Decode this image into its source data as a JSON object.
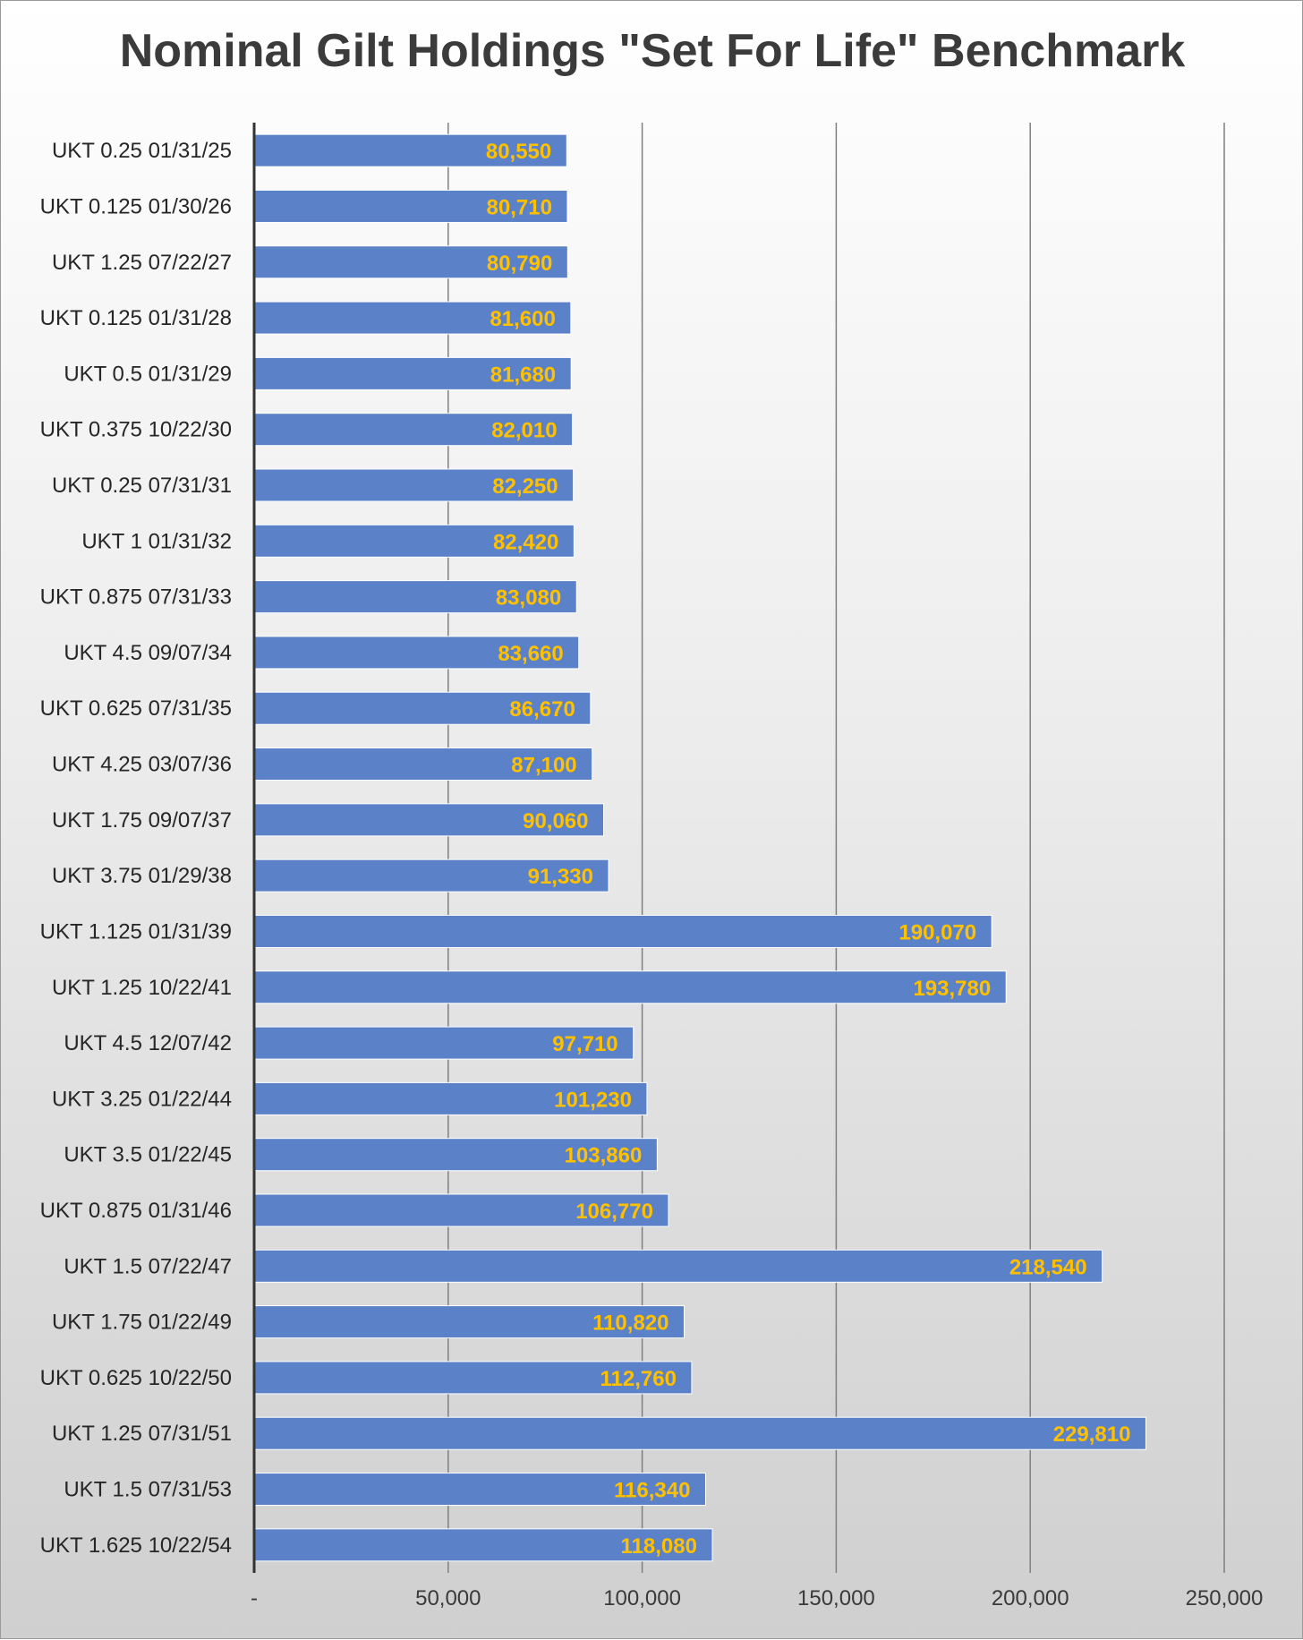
{
  "chart_data": {
    "type": "bar",
    "orientation": "horizontal",
    "title": "Nominal Gilt Holdings \"Set For Life\" Benchmark",
    "categories": [
      "UKT 0.25 01/31/25",
      "UKT 0.125 01/30/26",
      "UKT 1.25 07/22/27",
      "UKT 0.125 01/31/28",
      "UKT 0.5 01/31/29",
      "UKT 0.375 10/22/30",
      "UKT 0.25 07/31/31",
      "UKT 1 01/31/32",
      "UKT 0.875 07/31/33",
      "UKT 4.5 09/07/34",
      "UKT 0.625 07/31/35",
      "UKT 4.25 03/07/36",
      "UKT 1.75 09/07/37",
      "UKT 3.75 01/29/38",
      "UKT 1.125 01/31/39",
      "UKT 1.25 10/22/41",
      "UKT 4.5 12/07/42",
      "UKT 3.25 01/22/44",
      "UKT 3.5 01/22/45",
      "UKT 0.875 01/31/46",
      "UKT 1.5 07/22/47",
      "UKT 1.75 01/22/49",
      "UKT 0.625 10/22/50",
      "UKT 1.25 07/31/51",
      "UKT 1.5 07/31/53",
      "UKT 1.625 10/22/54"
    ],
    "values": [
      80550,
      80710,
      80790,
      81600,
      81680,
      82010,
      82250,
      82420,
      83080,
      83660,
      86670,
      87100,
      90060,
      91330,
      190070,
      193780,
      97710,
      101230,
      103860,
      106770,
      218540,
      110820,
      112760,
      229810,
      116340,
      118080
    ],
    "data_labels": [
      "80,550",
      "80,710",
      "80,790",
      "81,600",
      "81,680",
      "82,010",
      "82,250",
      "82,420",
      "83,080",
      "83,660",
      "86,670",
      "87,100",
      "90,060",
      "91,330",
      "190,070",
      "193,780",
      "97,710",
      "101,230",
      "103,860",
      "106,770",
      "218,540",
      "110,820",
      "112,760",
      "229,810",
      "116,340",
      "118,080"
    ],
    "xlim": [
      0,
      250000
    ],
    "x_ticks": [
      0,
      50000,
      100000,
      150000,
      200000,
      250000
    ],
    "x_tick_labels": [
      "-",
      "50,000",
      "100,000",
      "150,000",
      "200,000",
      "250,000"
    ],
    "xlabel": "",
    "ylabel": "",
    "grid": true,
    "legend": "none",
    "colors": {
      "bar": "#5b82c8",
      "bar_border": "#ffffff",
      "data_label": "#ffc000",
      "grid": "#7f7f7f",
      "axis": "#333333"
    }
  }
}
